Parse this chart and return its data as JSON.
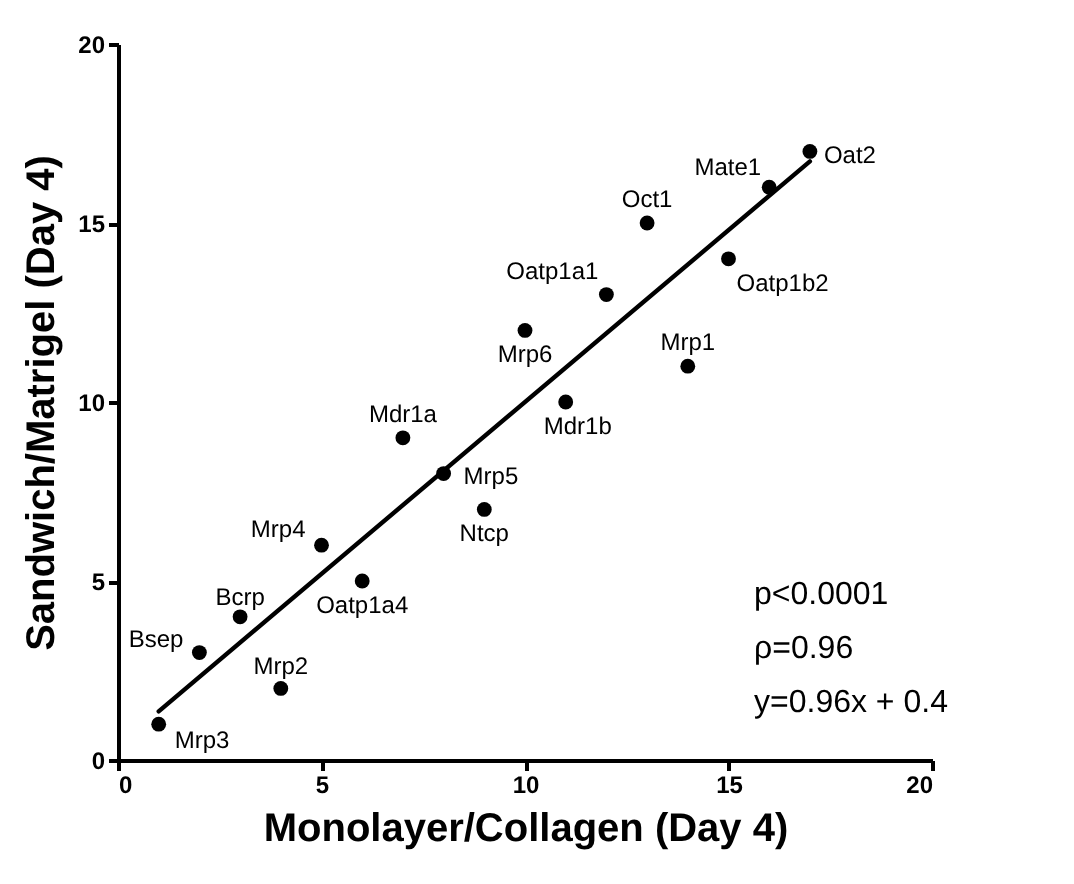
{
  "chart_data": {
    "type": "scatter",
    "xlabel": "Monolayer/Collagen (Day 4)",
    "ylabel": "Sandwich/Matrigel (Day 4)",
    "xlim": [
      0,
      20
    ],
    "ylim": [
      0,
      20
    ],
    "xticks": [
      0,
      5,
      10,
      15,
      20
    ],
    "yticks": [
      0,
      5,
      10,
      15,
      20
    ],
    "grid": false,
    "marker": "circle",
    "series": [
      {
        "color": "#000000",
        "x": [
          1,
          2,
          3,
          4,
          5,
          6,
          7,
          8,
          9,
          10,
          11,
          12,
          13,
          14,
          15,
          16,
          17
        ],
        "values": [
          1,
          3,
          4,
          2,
          6,
          5,
          9,
          8,
          7,
          12,
          10,
          13,
          15,
          11,
          14,
          16,
          17
        ]
      },
      {
        "type": "line",
        "color": "#000000",
        "line_style": "solid",
        "marker": "none",
        "x": [
          1,
          17
        ],
        "values": [
          1.36,
          16.72
        ]
      }
    ],
    "annotations": [
      {
        "text": "Mrp3",
        "x": 1,
        "y": 1
      },
      {
        "text": "Bsep",
        "x": 2,
        "y": 3
      },
      {
        "text": "Bcrp",
        "x": 3,
        "y": 4
      },
      {
        "text": "Mrp2",
        "x": 4,
        "y": 2
      },
      {
        "text": "Mrp4",
        "x": 5,
        "y": 6
      },
      {
        "text": "Oatp1a4",
        "x": 6,
        "y": 5
      },
      {
        "text": "Mdr1a",
        "x": 7,
        "y": 9
      },
      {
        "text": "Mrp5",
        "x": 8,
        "y": 8
      },
      {
        "text": "Ntcp",
        "x": 9,
        "y": 7
      },
      {
        "text": "Mrp6",
        "x": 10,
        "y": 12
      },
      {
        "text": "Mdr1b",
        "x": 11,
        "y": 10
      },
      {
        "text": "Oatp1a1",
        "x": 12,
        "y": 13
      },
      {
        "text": "Oct1",
        "x": 13,
        "y": 15
      },
      {
        "text": "Mrp1",
        "x": 14,
        "y": 11
      },
      {
        "text": "Oatp1b2",
        "x": 15,
        "y": 14
      },
      {
        "text": "Mate1",
        "x": 16,
        "y": 16
      },
      {
        "text": "Oat2",
        "x": 17,
        "y": 17
      },
      "p<0.0001",
      "ρ=0.96",
      "y=0.96x + 0.4"
    ]
  }
}
